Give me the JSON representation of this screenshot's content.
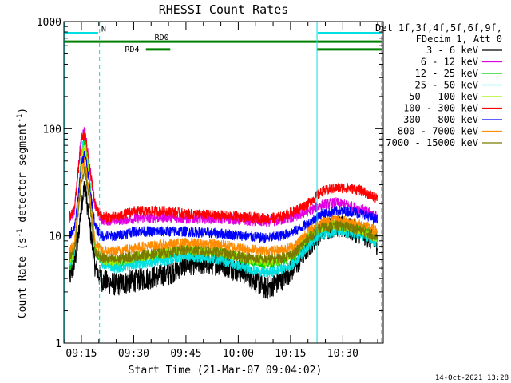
{
  "chart_data": {
    "type": "line",
    "title": "RHESSI Count Rates",
    "xlabel": "Start Time (21-Mar-07 09:04:02)",
    "ylabel_parts": [
      "Count Rate (s",
      "-1",
      " detector segment",
      "-1",
      ")"
    ],
    "y_scale": "log",
    "ylim": [
      1,
      1000
    ],
    "xlim_minutes": [
      9.97,
      101.6
    ],
    "yticks": [
      {
        "label": "1",
        "value": 1
      },
      {
        "label": "10",
        "value": 10
      },
      {
        "label": "100",
        "value": 100
      },
      {
        "label": "1000",
        "value": 1000
      }
    ],
    "xticks": [
      {
        "label": "09:15",
        "value": 15
      },
      {
        "label": "09:30",
        "value": 30
      },
      {
        "label": "09:45",
        "value": 45
      },
      {
        "label": "10:00",
        "value": 60
      },
      {
        "label": "10:15",
        "value": 75
      },
      {
        "label": "10:30",
        "value": 90
      }
    ],
    "grid": false,
    "legend_position": "right",
    "legend_header": [
      "Det 1f,3f,4f,5f,6f,9f,",
      "FDecim 1, Att 0"
    ],
    "series": [
      {
        "name": "3 - 6 keV",
        "color": "#000000",
        "x": [
          11.5,
          13,
          14,
          15,
          16,
          17,
          19,
          21,
          25,
          30,
          40,
          45,
          55,
          62,
          68,
          72,
          76,
          80,
          84,
          88,
          92,
          96,
          100
        ],
        "values": [
          4.0,
          5.5,
          9,
          20,
          30,
          16,
          5,
          3.8,
          3.5,
          3.8,
          4.4,
          5.5,
          5.5,
          4.5,
          3.2,
          3.8,
          5.0,
          8.0,
          11.5,
          12.5,
          11.5,
          10.5,
          8.5
        ]
      },
      {
        "name": "6 - 12 keV",
        "color": "#e000e0",
        "x": [
          11.5,
          13,
          14,
          15,
          16,
          17,
          19,
          21,
          25,
          30,
          40,
          45,
          55,
          62,
          68,
          72,
          76,
          80,
          84,
          88,
          92,
          96,
          100
        ],
        "values": [
          14,
          17,
          40,
          85,
          98,
          55,
          18,
          14,
          14,
          14.5,
          15,
          14.5,
          14.5,
          14,
          13.5,
          14,
          15,
          17,
          19.5,
          20.5,
          19,
          17.5,
          15
        ]
      },
      {
        "name": "12 - 25 keV",
        "color": "#00d000",
        "x": [
          11.5,
          13,
          14,
          15,
          16,
          17,
          19,
          21,
          25,
          30,
          40,
          45,
          55,
          62,
          68,
          72,
          76,
          80,
          84,
          88,
          92,
          96,
          100
        ],
        "values": [
          5.0,
          6.5,
          18,
          55,
          80,
          45,
          7,
          5.8,
          5.5,
          6.0,
          6.8,
          7.3,
          7.0,
          6.0,
          5.5,
          5.8,
          6.5,
          9.5,
          12.5,
          13.0,
          12.5,
          11.5,
          9.8
        ]
      },
      {
        "name": "25 - 50 keV",
        "color": "#00e0e0",
        "x": [
          11.5,
          13,
          14,
          15,
          16,
          17,
          19,
          21,
          25,
          30,
          40,
          45,
          55,
          62,
          68,
          72,
          76,
          80,
          84,
          88,
          92,
          96,
          100
        ],
        "values": [
          5.5,
          7.0,
          20,
          60,
          88,
          50,
          7.5,
          5.5,
          5.0,
          5.4,
          6.0,
          6.5,
          6.0,
          5.0,
          4.5,
          4.8,
          5.5,
          8.0,
          10.5,
          11.0,
          10.5,
          10.0,
          8.5
        ]
      },
      {
        "name": "50 - 100 keV",
        "color": "#a0f000",
        "x": [
          11.5,
          13,
          14,
          15,
          16,
          17,
          19,
          21,
          25,
          30,
          40,
          45,
          55,
          62,
          68,
          72,
          76,
          80,
          84,
          88,
          92,
          96,
          100
        ],
        "values": [
          5.8,
          7.5,
          19,
          52,
          75,
          42,
          7.5,
          6.0,
          5.8,
          6.3,
          7.0,
          7.5,
          7.2,
          6.2,
          5.8,
          6.0,
          6.8,
          10.0,
          12.0,
          12.5,
          12.0,
          11.0,
          9.5
        ]
      },
      {
        "name": "100 - 300 keV",
        "color": "#ff0000",
        "x": [
          11.5,
          13,
          14,
          15,
          16,
          17,
          19,
          21,
          25,
          30,
          40,
          45,
          55,
          62,
          68,
          72,
          76,
          80,
          84,
          88,
          92,
          96,
          100
        ],
        "values": [
          15,
          18,
          38,
          75,
          90,
          52,
          19,
          15,
          15,
          17,
          17,
          16,
          15.5,
          15,
          14.5,
          15,
          17,
          20,
          26,
          28,
          28,
          26,
          22
        ]
      },
      {
        "name": "300 - 800 keV",
        "color": "#0000ff",
        "x": [
          11.5,
          13,
          14,
          15,
          16,
          17,
          19,
          21,
          25,
          30,
          40,
          45,
          55,
          62,
          68,
          72,
          76,
          80,
          84,
          88,
          92,
          96,
          100
        ],
        "values": [
          10,
          12,
          22,
          45,
          60,
          35,
          12,
          10,
          10,
          11,
          11,
          11,
          10.5,
          10,
          9.5,
          10,
          11,
          13,
          16,
          17,
          17,
          16,
          14
        ]
      },
      {
        "name": "800 - 7000 keV",
        "color": "#ff8c00",
        "x": [
          11.5,
          13,
          14,
          15,
          16,
          17,
          19,
          21,
          25,
          30,
          40,
          45,
          55,
          62,
          68,
          72,
          76,
          80,
          84,
          88,
          92,
          96,
          100
        ],
        "values": [
          7.0,
          8.5,
          17,
          38,
          50,
          30,
          8.5,
          7.2,
          7.2,
          7.8,
          8.3,
          8.6,
          8.3,
          7.6,
          7.2,
          7.4,
          8.0,
          11,
          13.5,
          14,
          13.5,
          12.5,
          11
        ]
      },
      {
        "name": "7000 - 15000 keV",
        "color": "#7a7a00",
        "x": [
          11.5,
          13,
          14,
          15,
          16,
          17,
          19,
          21,
          25,
          30,
          40,
          45,
          55,
          62,
          68,
          72,
          76,
          80,
          84,
          88,
          92,
          96,
          100
        ],
        "values": [
          6.0,
          7.2,
          15,
          33,
          42,
          26,
          7.0,
          6.2,
          6.0,
          6.5,
          7.0,
          7.4,
          7.0,
          6.3,
          6.0,
          6.2,
          6.8,
          9.5,
          12,
          12.5,
          12,
          11,
          9.8
        ]
      }
    ],
    "annotations": {
      "attenuator_bars": [
        {
          "label": "N",
          "color": "#00e0e0",
          "y_value": 780,
          "segments": [
            [
              10,
              19.8
            ],
            [
              82.8,
              101.2
            ]
          ]
        },
        {
          "label": "RD0",
          "color": "#008000",
          "y_value": 650,
          "segments": [
            [
              10,
              82.5
            ],
            [
              82.7,
              101.2
            ]
          ]
        },
        {
          "label": "RD4",
          "color": "#008000",
          "y_value": 550,
          "segments": [
            [
              33.5,
              40.5
            ],
            [
              82.7,
              101.2
            ]
          ]
        }
      ],
      "vlines_solid": [
        10.05,
        82.6
      ],
      "vlines_dashed": [
        20.2,
        101.1
      ]
    }
  },
  "footer": {
    "date_stamp": "14-Oct-2021 13:28"
  }
}
